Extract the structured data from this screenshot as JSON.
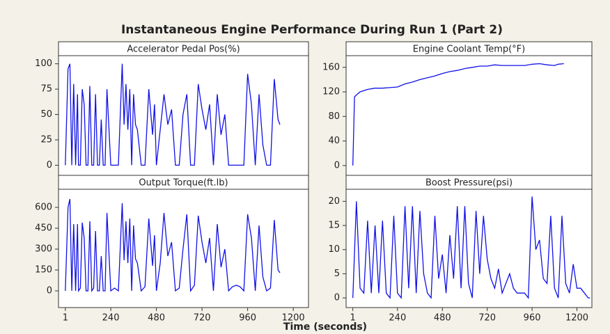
{
  "title": "Instantaneous Engine Performance During Run 1 (Part 2)",
  "xlabel": "Time (seconds)",
  "chart_data": [
    {
      "type": "line",
      "title": "Accelerator Pedal Pos(%)",
      "color": "#1010e8",
      "x": [
        1,
        15,
        25,
        35,
        45,
        55,
        65,
        70,
        80,
        90,
        100,
        110,
        120,
        130,
        140,
        150,
        160,
        170,
        180,
        190,
        200,
        210,
        220,
        240,
        260,
        280,
        300,
        310,
        320,
        330,
        340,
        350,
        360,
        370,
        380,
        400,
        420,
        440,
        460,
        470,
        480,
        500,
        520,
        540,
        560,
        580,
        600,
        620,
        640,
        660,
        680,
        700,
        720,
        740,
        760,
        780,
        800,
        820,
        840,
        860,
        880,
        900,
        920,
        940,
        960,
        980,
        1000,
        1020,
        1040,
        1060,
        1080,
        1100,
        1120,
        1130
      ],
      "values": [
        0,
        95,
        100,
        0,
        80,
        0,
        70,
        0,
        0,
        75,
        60,
        0,
        0,
        78,
        0,
        0,
        70,
        0,
        0,
        45,
        0,
        0,
        75,
        0,
        0,
        0,
        100,
        40,
        80,
        35,
        75,
        0,
        70,
        40,
        35,
        0,
        0,
        75,
        30,
        60,
        0,
        35,
        70,
        40,
        55,
        0,
        0,
        50,
        70,
        0,
        0,
        80,
        55,
        35,
        60,
        0,
        70,
        30,
        50,
        0,
        0,
        0,
        0,
        0,
        90,
        60,
        0,
        70,
        20,
        0,
        0,
        85,
        45,
        40
      ],
      "xlim": [
        -35,
        1280
      ],
      "ylim": [
        -10,
        108
      ],
      "yticks": [
        0,
        25,
        50,
        75,
        100
      ]
    },
    {
      "type": "line",
      "title": "Engine Coolant Temp(°F)",
      "color": "#1010e8",
      "x": [
        1,
        10,
        20,
        40,
        80,
        120,
        160,
        200,
        240,
        280,
        320,
        360,
        400,
        440,
        480,
        520,
        560,
        600,
        640,
        680,
        720,
        760,
        800,
        840,
        880,
        920,
        960,
        1000,
        1040,
        1080,
        1100,
        1130
      ],
      "values": [
        0,
        112,
        115,
        120,
        124,
        126,
        126,
        127,
        128,
        133,
        136,
        140,
        143,
        146,
        150,
        153,
        155,
        158,
        160,
        162,
        162,
        164,
        163,
        163,
        163,
        163,
        165,
        166,
        164,
        163,
        165,
        166
      ],
      "xlim": [
        -35,
        1280
      ],
      "ylim": [
        -16,
        179
      ],
      "yticks": [
        0,
        40,
        80,
        120,
        160
      ]
    },
    {
      "type": "line",
      "title": "Output Torque(ft.lb)",
      "color": "#1010e8",
      "x": [
        1,
        15,
        25,
        35,
        45,
        55,
        65,
        70,
        80,
        90,
        100,
        110,
        120,
        130,
        140,
        150,
        160,
        170,
        180,
        190,
        200,
        210,
        220,
        240,
        260,
        280,
        300,
        310,
        320,
        330,
        340,
        350,
        360,
        370,
        380,
        400,
        420,
        440,
        460,
        470,
        480,
        500,
        520,
        540,
        560,
        580,
        600,
        620,
        640,
        660,
        680,
        700,
        720,
        740,
        760,
        780,
        800,
        820,
        840,
        860,
        880,
        900,
        920,
        940,
        960,
        980,
        1000,
        1020,
        1040,
        1060,
        1080,
        1100,
        1120,
        1130
      ],
      "values": [
        0,
        600,
        660,
        0,
        480,
        0,
        480,
        0,
        20,
        490,
        380,
        0,
        0,
        500,
        0,
        20,
        430,
        0,
        0,
        250,
        0,
        0,
        560,
        0,
        20,
        0,
        630,
        220,
        500,
        200,
        520,
        0,
        470,
        230,
        200,
        0,
        30,
        520,
        180,
        400,
        0,
        200,
        560,
        250,
        350,
        0,
        20,
        300,
        550,
        0,
        40,
        540,
        350,
        200,
        380,
        0,
        480,
        170,
        300,
        0,
        30,
        40,
        30,
        0,
        550,
        380,
        0,
        470,
        100,
        0,
        20,
        510,
        150,
        130
      ],
      "xlim": [
        -35,
        1280
      ],
      "xticks": [
        1,
        240,
        480,
        720,
        960,
        1200
      ],
      "ylim": [
        -120,
        730
      ],
      "yticks": [
        0,
        150,
        300,
        450,
        600
      ]
    },
    {
      "type": "line",
      "title": "Boost Pressure(psi)",
      "color": "#1010e8",
      "x": [
        1,
        20,
        40,
        60,
        80,
        100,
        120,
        140,
        160,
        180,
        200,
        220,
        240,
        260,
        280,
        300,
        320,
        340,
        360,
        380,
        400,
        420,
        440,
        460,
        480,
        500,
        520,
        540,
        560,
        580,
        600,
        620,
        640,
        660,
        680,
        700,
        720,
        740,
        760,
        780,
        800,
        820,
        840,
        860,
        880,
        900,
        920,
        940,
        960,
        980,
        1000,
        1020,
        1040,
        1060,
        1080,
        1100,
        1120,
        1140,
        1160,
        1180,
        1200,
        1220,
        1240,
        1260,
        1270
      ],
      "values": [
        0,
        20,
        2,
        1,
        16,
        1,
        15,
        1,
        16,
        1,
        0,
        17,
        1,
        0,
        19,
        2,
        19,
        1,
        18,
        5,
        1,
        0,
        17,
        4,
        9,
        1,
        13,
        4,
        19,
        2,
        19,
        3,
        0,
        18,
        5,
        17,
        8,
        4,
        2,
        6,
        1,
        3,
        5,
        2,
        1,
        1,
        1,
        0,
        21,
        10,
        12,
        4,
        3,
        17,
        2,
        0,
        17,
        3,
        1,
        7,
        2,
        2,
        1,
        0,
        0
      ],
      "xlim": [
        -35,
        1280
      ],
      "xticks": [
        1,
        240,
        480,
        720,
        960,
        1200
      ],
      "ylim": [
        -2,
        22.5
      ],
      "yticks": [
        0,
        5,
        10,
        15,
        20
      ]
    }
  ]
}
